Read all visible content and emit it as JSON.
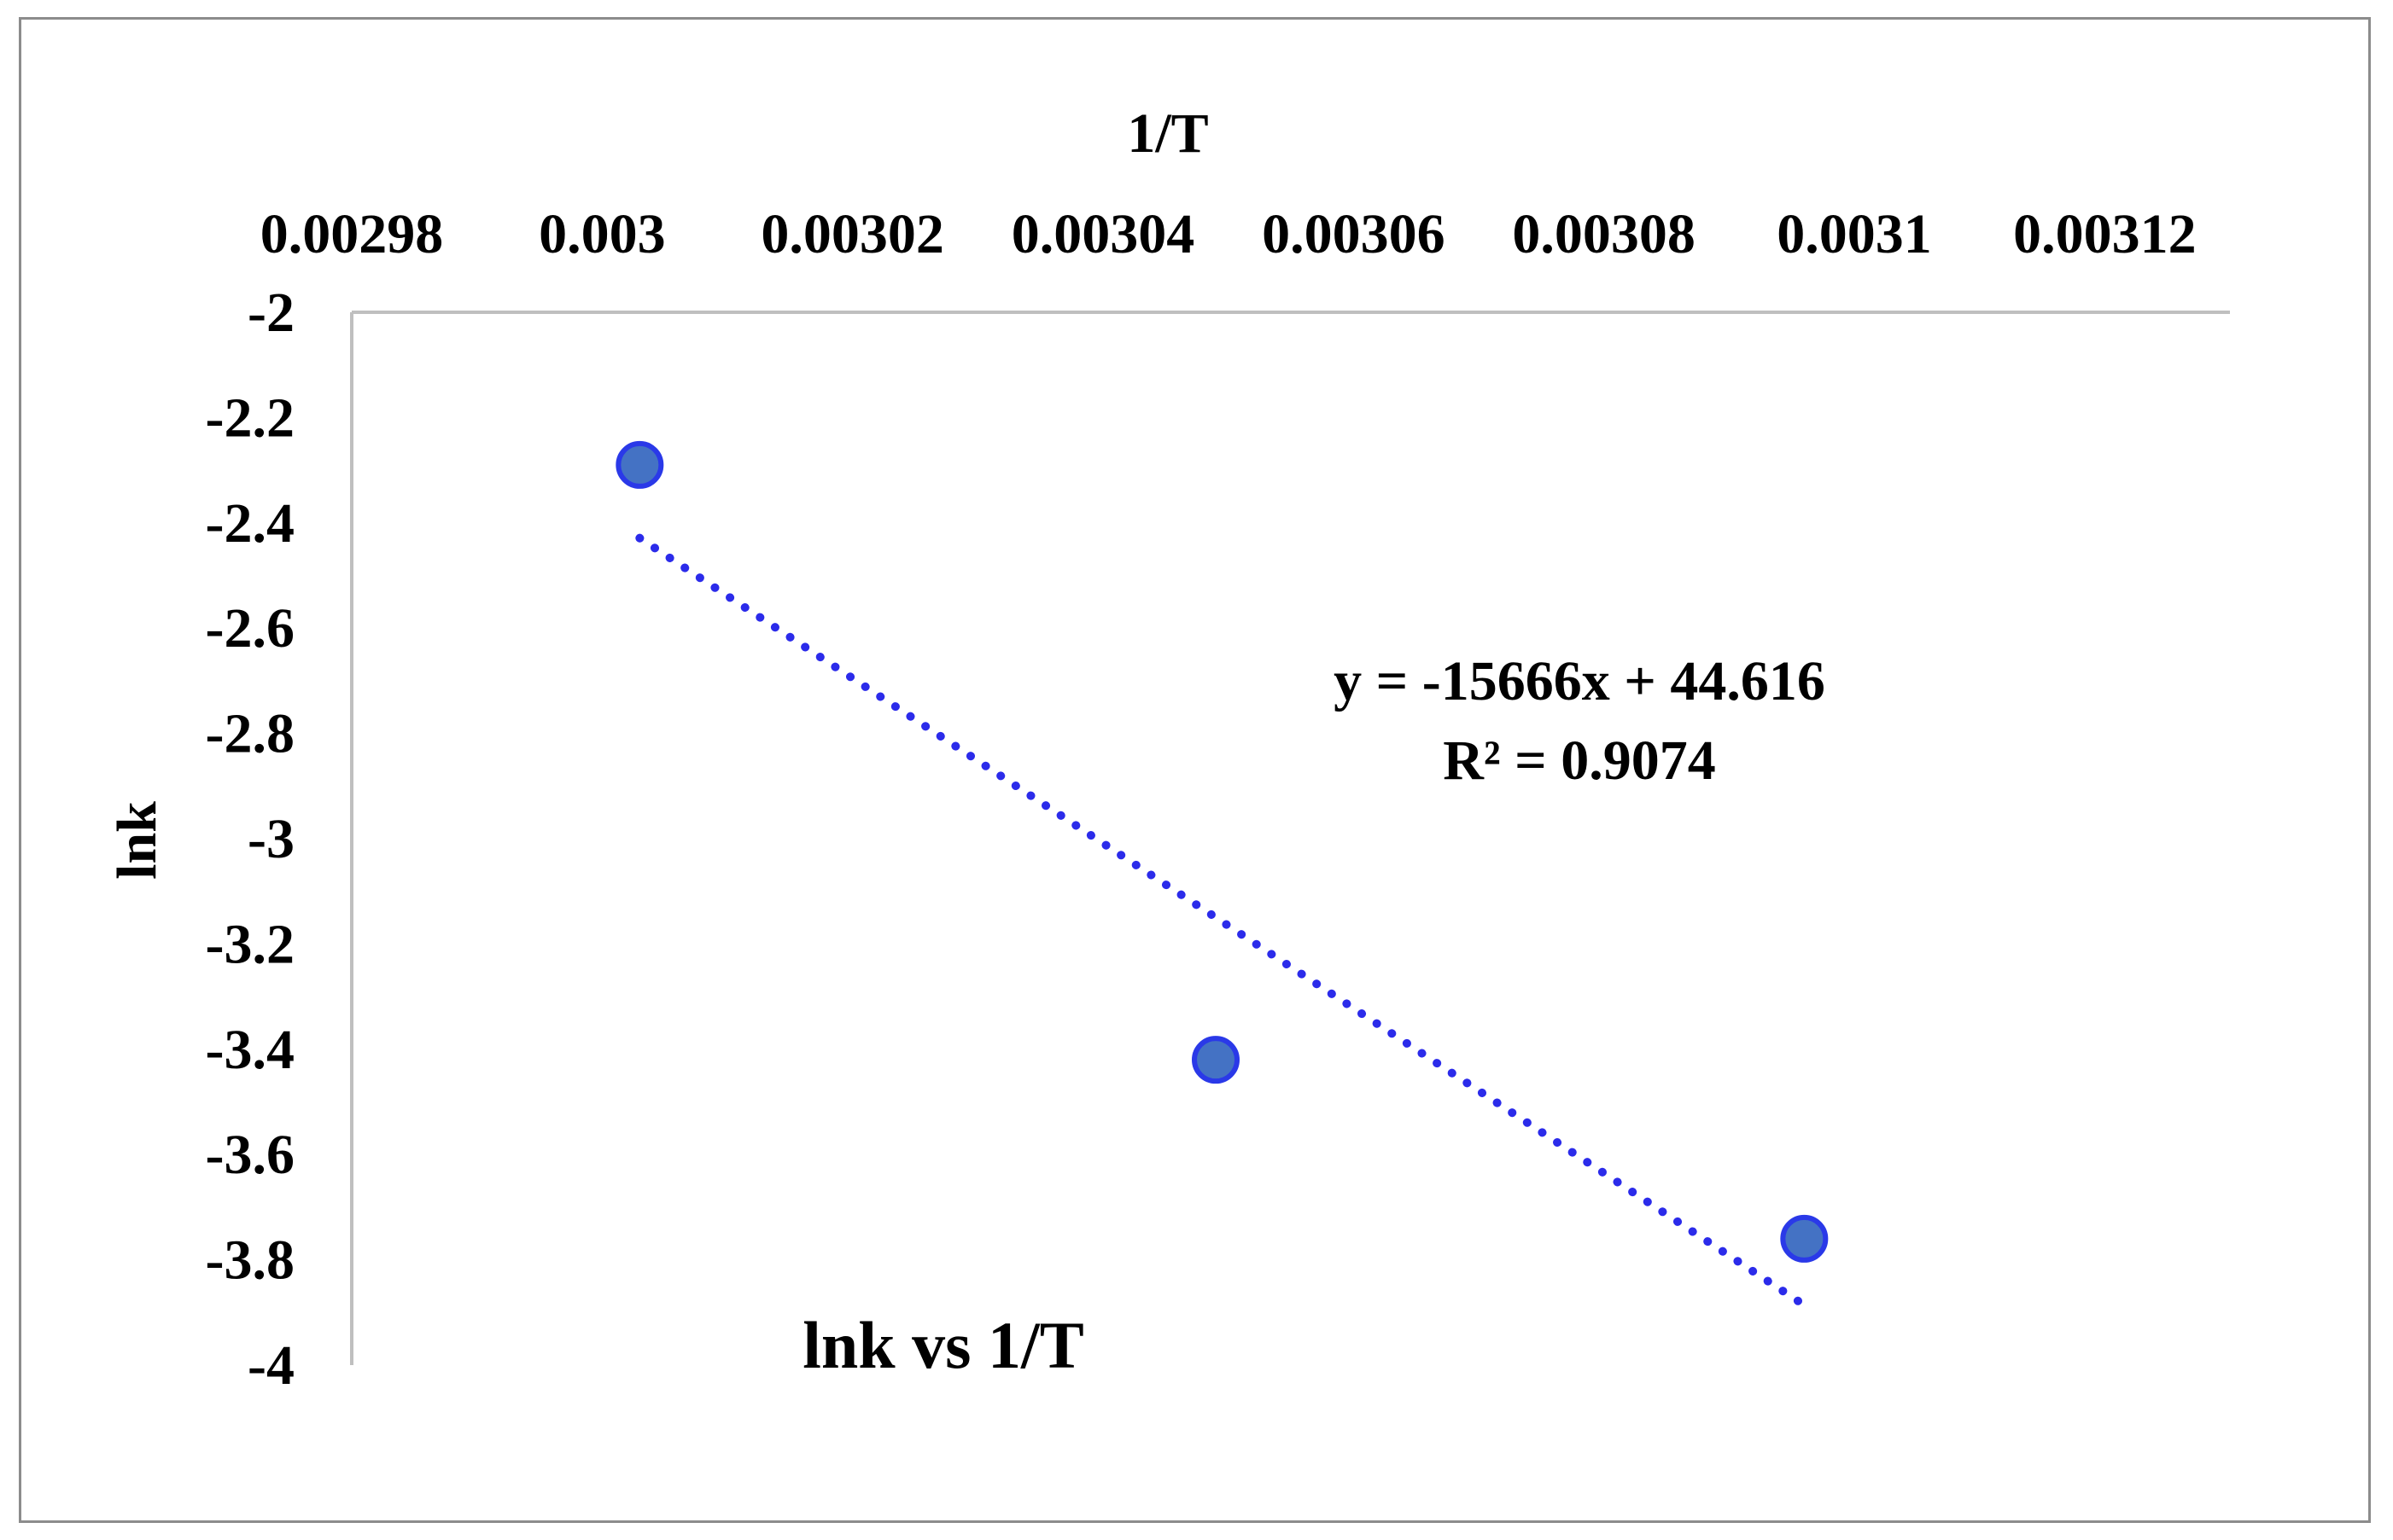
{
  "chart_data": {
    "type": "scatter",
    "title": "lnk vs 1/T",
    "xlabel": "1/T",
    "ylabel": "lnk",
    "x_axis_position": "top",
    "x_ticks": [
      "0.00298",
      "0.003",
      "0.00302",
      "0.00304",
      "0.00306",
      "0.00308",
      "0.0031",
      "0.00312"
    ],
    "y_ticks": [
      "-2",
      "-2.2",
      "-2.4",
      "-2.6",
      "-2.8",
      "-3",
      "-3.2",
      "-3.4",
      "-3.6",
      "-3.8",
      "-4"
    ],
    "xlim": [
      0.00298,
      0.00312
    ],
    "ylim": [
      -4,
      -2
    ],
    "grid": false,
    "series": [
      {
        "x": [
          0.003003,
          0.003049,
          0.003096
        ],
        "y": [
          -2.29,
          -3.42,
          -3.76
        ],
        "color": "#4472c4",
        "edge_color": "#2a39e8"
      }
    ],
    "trendline": {
      "type": "linear",
      "slope": -15666,
      "intercept": 44.616,
      "x_range": [
        0.003003,
        0.003096
      ],
      "color": "#2b2bea",
      "style": "dotted",
      "equation": "y = -15666x + 44.616",
      "r_squared": "R² = 0.9074"
    }
  }
}
